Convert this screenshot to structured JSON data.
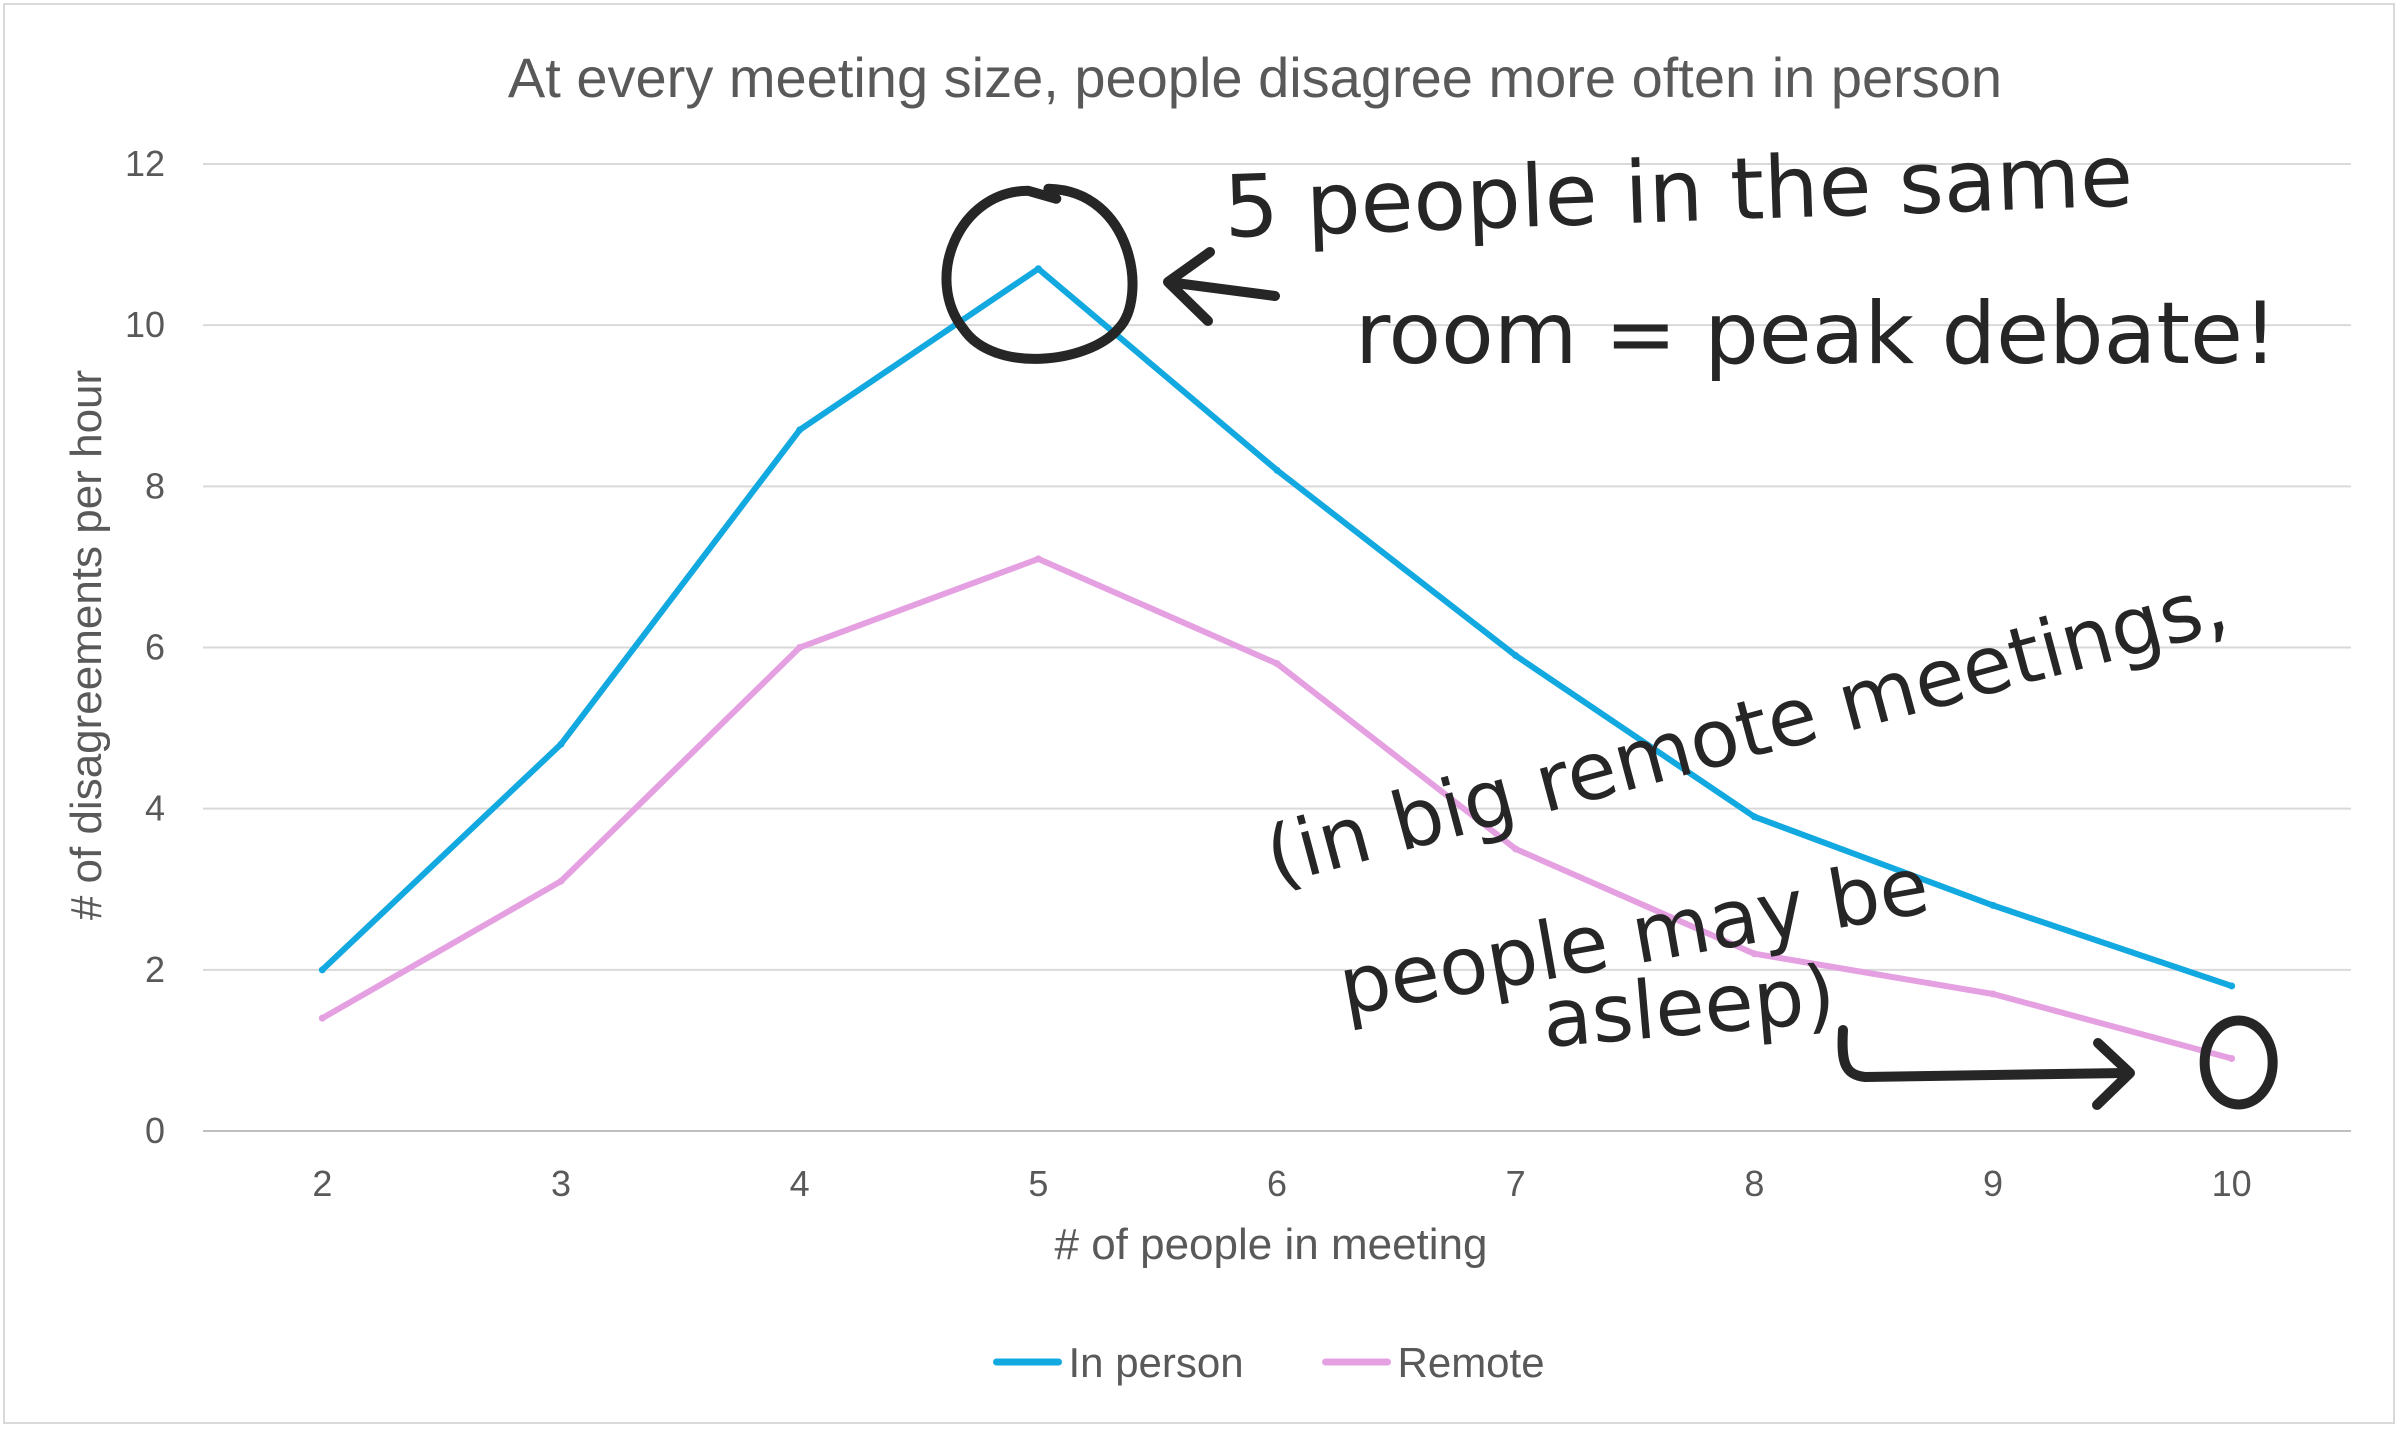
{
  "chart_data": {
    "type": "line",
    "title": "At every meeting size, people disagree more often in person",
    "xlabel": "# of people in meeting",
    "ylabel": "# of disagreements per hour",
    "x": [
      2,
      3,
      4,
      5,
      6,
      7,
      8,
      9,
      10
    ],
    "ylim": [
      0,
      12
    ],
    "yticks": [
      0,
      2,
      4,
      6,
      8,
      10,
      12
    ],
    "grid": true,
    "legend_position": "bottom",
    "series": [
      {
        "name": "In person",
        "color": "#12A8E0",
        "values": [
          2.0,
          4.8,
          8.7,
          10.7,
          8.2,
          5.9,
          3.9,
          2.8,
          1.8
        ]
      },
      {
        "name": "Remote",
        "color": "#E5A0E2",
        "values": [
          1.4,
          3.1,
          6.0,
          7.1,
          5.8,
          3.5,
          2.2,
          1.7,
          0.9
        ]
      }
    ],
    "annotations": [
      {
        "text_lines": [
          "5 people in the same",
          "room = peak debate!"
        ],
        "target_x": 5,
        "target_series": "In person"
      },
      {
        "text_lines": [
          "(in big remote meetings,",
          "people may be",
          "asleep)"
        ],
        "target_x": 10,
        "target_series": "Remote"
      }
    ]
  }
}
